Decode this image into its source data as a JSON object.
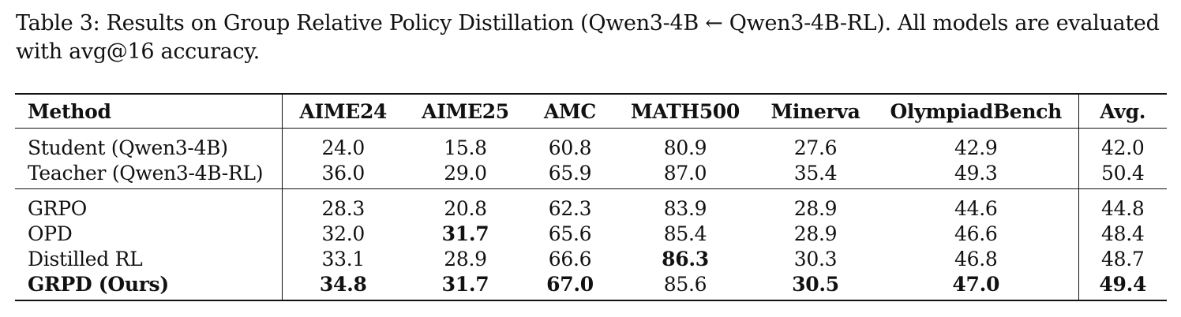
{
  "caption": "Table 3: Results on Group Relative Policy Distillation (Qwen3-4B ← Qwen3-4B-RL). All models are evaluated with avg@16 accuracy.",
  "table": {
    "headers": [
      "Method",
      "AIME24",
      "AIME25",
      "AMC",
      "MATH500",
      "Minerva",
      "OlympiadBench",
      "Avg."
    ],
    "groups": [
      {
        "rows": [
          {
            "method": "Student (Qwen3-4B)",
            "cells": [
              "24.0",
              "15.8",
              "60.8",
              "80.9",
              "27.6",
              "42.9",
              "42.0"
            ],
            "bold": [
              false,
              false,
              false,
              false,
              false,
              false,
              false
            ],
            "method_bold": false
          },
          {
            "method": "Teacher (Qwen3-4B-RL)",
            "cells": [
              "36.0",
              "29.0",
              "65.9",
              "87.0",
              "35.4",
              "49.3",
              "50.4"
            ],
            "bold": [
              false,
              false,
              false,
              false,
              false,
              false,
              false
            ],
            "method_bold": false
          }
        ]
      },
      {
        "rows": [
          {
            "method": "GRPO",
            "cells": [
              "28.3",
              "20.8",
              "62.3",
              "83.9",
              "28.9",
              "44.6",
              "44.8"
            ],
            "bold": [
              false,
              false,
              false,
              false,
              false,
              false,
              false
            ],
            "method_bold": false
          },
          {
            "method": "OPD",
            "cells": [
              "32.0",
              "31.7",
              "65.6",
              "85.4",
              "28.9",
              "46.6",
              "48.4"
            ],
            "bold": [
              false,
              true,
              false,
              false,
              false,
              false,
              false
            ],
            "method_bold": false
          },
          {
            "method": "Distilled RL",
            "cells": [
              "33.1",
              "28.9",
              "66.6",
              "86.3",
              "30.3",
              "46.8",
              "48.7"
            ],
            "bold": [
              false,
              false,
              false,
              true,
              false,
              false,
              false
            ],
            "method_bold": false
          },
          {
            "method": "GRPD (Ours)",
            "cells": [
              "34.8",
              "31.7",
              "67.0",
              "85.6",
              "30.5",
              "47.0",
              "49.4"
            ],
            "bold": [
              true,
              true,
              true,
              false,
              true,
              true,
              true
            ],
            "method_bold": true
          }
        ]
      }
    ]
  }
}
